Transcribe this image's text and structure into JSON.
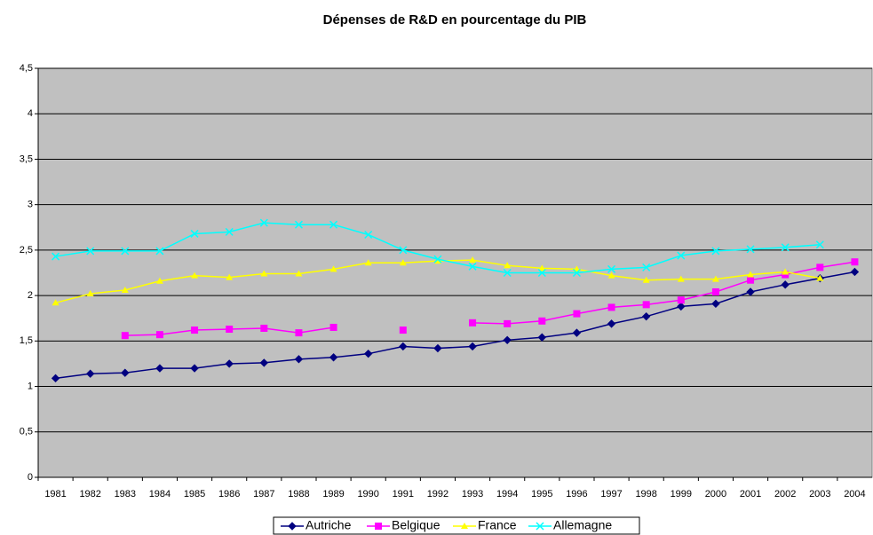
{
  "chart_data": {
    "type": "line",
    "title": "Dépenses de R&D en pourcentage du PIB",
    "categories": [
      "1981",
      "1982",
      "1983",
      "1984",
      "1985",
      "1986",
      "1987",
      "1988",
      "1989",
      "1990",
      "1991",
      "1992",
      "1993",
      "1994",
      "1995",
      "1996",
      "1997",
      "1998",
      "1999",
      "2000",
      "2001",
      "2002",
      "2003",
      "2004"
    ],
    "series": [
      {
        "name": "Autriche",
        "color": "#000080",
        "marker": "diamond",
        "values": [
          1.09,
          1.14,
          1.15,
          1.2,
          1.2,
          1.25,
          1.26,
          1.3,
          1.32,
          1.36,
          1.44,
          1.42,
          1.44,
          1.51,
          1.54,
          1.59,
          1.69,
          1.77,
          1.88,
          1.91,
          2.04,
          2.12,
          2.19,
          2.26
        ]
      },
      {
        "name": "Belgique",
        "color": "#FF00FF",
        "marker": "square",
        "values": [
          null,
          null,
          1.56,
          1.57,
          1.62,
          1.63,
          1.64,
          1.59,
          1.65,
          null,
          1.62,
          null,
          1.7,
          1.69,
          1.72,
          1.8,
          1.87,
          1.9,
          1.95,
          2.04,
          2.17,
          2.23,
          2.31,
          2.37
        ]
      },
      {
        "name": "France",
        "color": "#FFFF00",
        "marker": "triangle",
        "values": [
          1.92,
          2.02,
          2.06,
          2.16,
          2.22,
          2.2,
          2.24,
          2.24,
          2.29,
          2.36,
          2.36,
          2.38,
          2.39,
          2.33,
          2.3,
          2.29,
          2.22,
          2.17,
          2.18,
          2.18,
          2.23,
          2.26,
          2.19,
          null
        ]
      },
      {
        "name": "Allemagne",
        "color": "#00FFFF",
        "marker": "x",
        "values": [
          2.43,
          2.49,
          2.49,
          2.49,
          2.68,
          2.7,
          2.8,
          2.78,
          2.78,
          2.67,
          2.5,
          2.4,
          2.32,
          2.25,
          2.25,
          2.25,
          2.29,
          2.31,
          2.44,
          2.49,
          2.51,
          2.53,
          2.56,
          null
        ]
      }
    ],
    "ylim": [
      0,
      4.5
    ],
    "yticks": [
      0,
      {
        "value": 0.5,
        "label": "0,5"
      },
      1,
      {
        "value": 1.5,
        "label": "1,5"
      },
      2,
      {
        "value": 2.5,
        "label": "2,5"
      },
      3,
      {
        "value": 3.5,
        "label": "3,5"
      },
      4,
      {
        "value": 4.5,
        "label": "4,5"
      }
    ],
    "grid": true,
    "plot_background": "#C0C0C0",
    "legend": "bottom"
  }
}
